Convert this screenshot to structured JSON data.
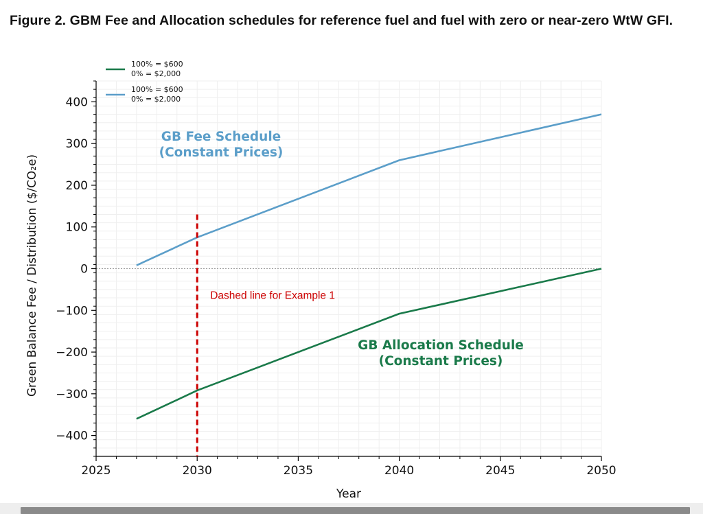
{
  "caption": "Figure 2. GBM Fee and Allocation schedules for reference fuel and fuel with zero or near-zero WtW GFI.",
  "chart_data": {
    "type": "line",
    "xlabel": "Year",
    "ylabel": "Green Balance Fee / Distribution ($/CO₂e)",
    "xlim": [
      2025,
      2050
    ],
    "ylim": [
      -450,
      450
    ],
    "xticks": [
      2025,
      2030,
      2035,
      2040,
      2045,
      2050
    ],
    "yticks": [
      -400,
      -300,
      -200,
      -100,
      0,
      100,
      200,
      300,
      400
    ],
    "ytick_labels": [
      "−400",
      "−300",
      "−200",
      "−100",
      "0",
      "100",
      "200",
      "300",
      "400"
    ],
    "grid": true,
    "legend_position": "top-left",
    "legend": [
      {
        "line1": "100% = $600",
        "line2": "0% = $2,000",
        "color": "#1a7a4a"
      },
      {
        "line1": "100% = $600",
        "line2": "0% = $2,000",
        "color": "#5b9ec9"
      }
    ],
    "series": [
      {
        "label_lines": [
          "GB Fee Schedule",
          "(Constant Prices)"
        ],
        "color": "#5b9ec9",
        "x": [
          2027,
          2030,
          2040,
          2050
        ],
        "y": [
          8,
          75,
          260,
          370
        ]
      },
      {
        "label_lines": [
          "GB Allocation Schedule",
          "(Constant Prices)"
        ],
        "color": "#1a7a4a",
        "x": [
          2027,
          2030,
          2040,
          2050
        ],
        "y": [
          -360,
          -292,
          -108,
          0
        ]
      }
    ],
    "zero_reference_line": {
      "y": 0,
      "style": "dotted",
      "color": "#999999"
    },
    "vertical_marker": {
      "x": 2030,
      "y_top": 130,
      "style": "dashed",
      "color": "#cc0000",
      "annotation": "Dashed line for Example 1"
    }
  }
}
